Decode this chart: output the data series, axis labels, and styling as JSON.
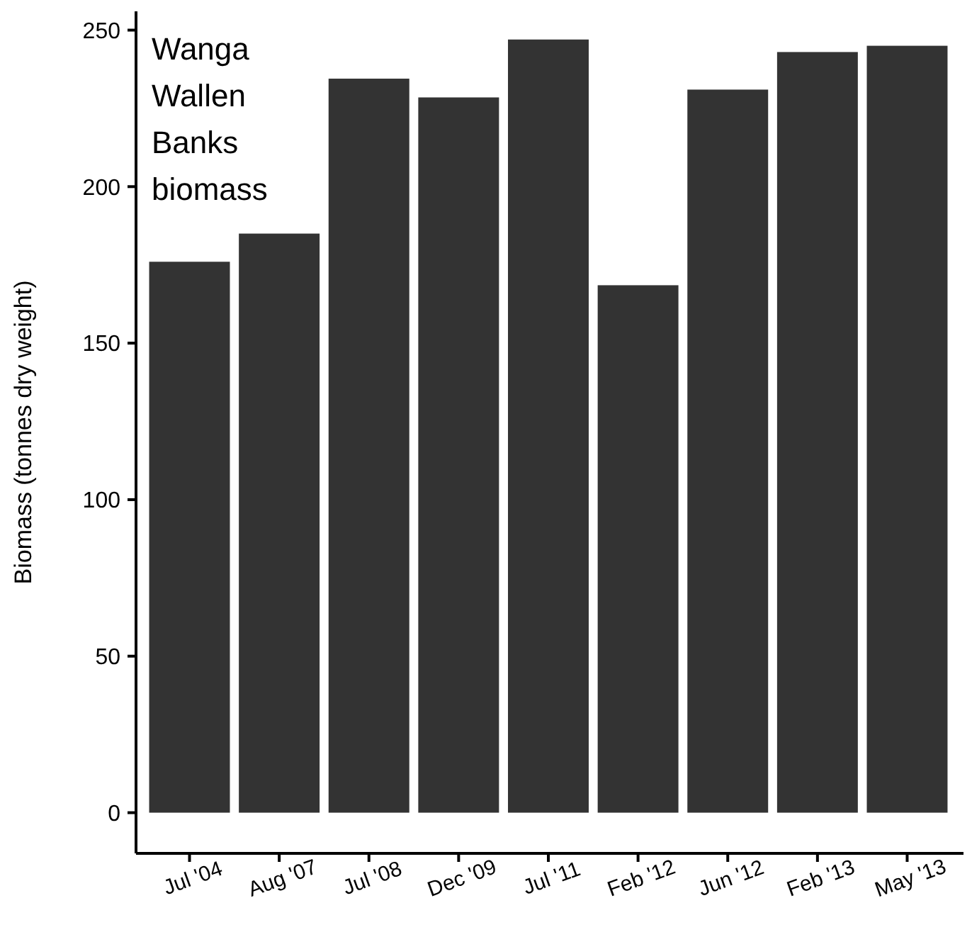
{
  "chart_data": {
    "type": "bar",
    "title": "Wanga Wallen Banks biomass",
    "ylabel": "Biomass (tonnes dry weight)",
    "categories": [
      "Jul '04",
      "Aug '07",
      "Jul '08",
      "Dec '09",
      "Jul '11",
      "Feb '12",
      "Jun '12",
      "Feb '13",
      "May '13"
    ],
    "values": [
      176,
      185,
      234.5,
      228.5,
      247,
      168.5,
      231,
      243,
      245
    ],
    "color": "#333333",
    "ylim": [
      -13,
      256
    ],
    "yticks": [
      0,
      50,
      100,
      150,
      200,
      250
    ]
  }
}
